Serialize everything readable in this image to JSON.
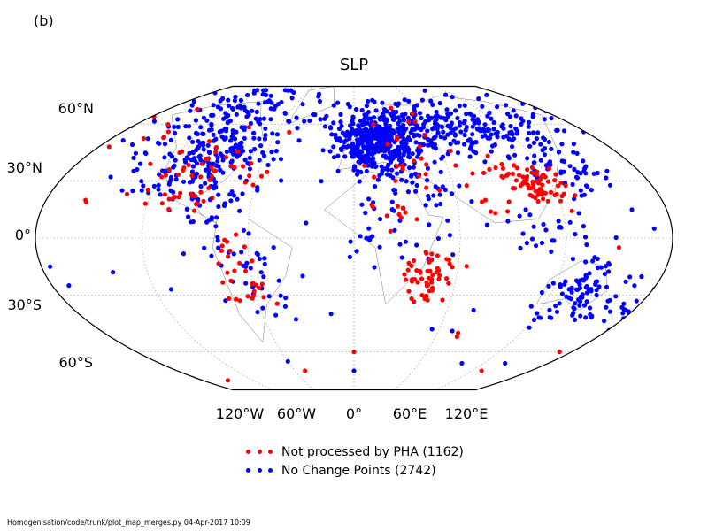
{
  "panel_label": "(b)",
  "title": "SLP",
  "lat_labels": [
    "60°N",
    "30°N",
    "0°",
    "30°S",
    "60°S"
  ],
  "lon_labels": [
    "120°W",
    "60°W",
    "0°",
    "60°E",
    "120°E"
  ],
  "legend": [
    {
      "label": "Not processed by PHA (1162)",
      "color": "#ff0000"
    },
    {
      "label": "No Change Points (2742)",
      "color": "#0000ff"
    }
  ],
  "footer": "Homogenisation/code/trunk/plot_map_merges.py   04-Apr-2017 10:09",
  "chart_data": {
    "type": "scatter",
    "projection": "Robinson",
    "grid": true,
    "legend_position": "bottom-center",
    "series": [
      {
        "name": "Not processed by PHA (1162)",
        "color": "#ff0000",
        "clusters": [
          {
            "lon": -95,
            "lat": 38,
            "spread": [
              18,
              9
            ],
            "count": 45
          },
          {
            "lon": -102,
            "lat": 20,
            "spread": [
              8,
              6
            ],
            "count": 14
          },
          {
            "lon": -65,
            "lat": -25,
            "spread": [
              8,
              12
            ],
            "count": 30
          },
          {
            "lon": -150,
            "lat": 60,
            "spread": [
              12,
              5
            ],
            "count": 8
          },
          {
            "lon": 45,
            "lat": -20,
            "spread": [
              8,
              6
            ],
            "count": 55
          },
          {
            "lon": 112,
            "lat": 27,
            "spread": [
              9,
              6
            ],
            "count": 70
          },
          {
            "lon": 60,
            "lat": 38,
            "spread": [
              22,
              6
            ],
            "count": 24
          },
          {
            "lon": 20,
            "lat": 10,
            "spread": [
              10,
              6
            ],
            "count": 10
          },
          {
            "lon": 80,
            "lat": 18,
            "spread": [
              5,
              5
            ],
            "count": 6
          },
          {
            "lon": 30,
            "lat": 60,
            "spread": [
              15,
              5
            ],
            "count": 8
          }
        ],
        "points": [
          {
            "lon": -157,
            "lat": 20
          },
          {
            "lon": -156,
            "lat": 19
          },
          {
            "lon": 75,
            "lat": -50
          },
          {
            "lon": 76,
            "lat": -52
          },
          {
            "lon": 170,
            "lat": -60
          },
          {
            "lon": 0,
            "lat": -60
          },
          {
            "lon": -150,
            "lat": -75
          },
          {
            "lon": -50,
            "lat": -70
          },
          {
            "lon": 130,
            "lat": -70
          },
          {
            "lon": 150,
            "lat": -5
          }
        ]
      },
      {
        "name": "No Change Points (2742)",
        "color": "#0000ff",
        "clusters": [
          {
            "lon": 15,
            "lat": 50,
            "spread": [
              14,
              8
            ],
            "count": 380
          },
          {
            "lon": 60,
            "lat": 55,
            "spread": [
              32,
              8
            ],
            "count": 170
          },
          {
            "lon": 110,
            "lat": 60,
            "spread": [
              35,
              7
            ],
            "count": 110
          },
          {
            "lon": 135,
            "lat": 40,
            "spread": [
              10,
              8
            ],
            "count": 55
          },
          {
            "lon": -95,
            "lat": 40,
            "spread": [
              22,
              10
            ],
            "count": 180
          },
          {
            "lon": -110,
            "lat": 60,
            "spread": [
              30,
              8
            ],
            "count": 80
          },
          {
            "lon": -100,
            "lat": 72,
            "spread": [
              35,
              6
            ],
            "count": 40
          },
          {
            "lon": 140,
            "lat": -28,
            "spread": [
              12,
              8
            ],
            "count": 95
          },
          {
            "lon": 110,
            "lat": 12,
            "spread": [
              15,
              10
            ],
            "count": 30
          },
          {
            "lon": 25,
            "lat": 5,
            "spread": [
              20,
              10
            ],
            "count": 35
          },
          {
            "lon": 45,
            "lat": 25,
            "spread": [
              15,
              6
            ],
            "count": 25
          },
          {
            "lon": -60,
            "lat": -20,
            "spread": [
              15,
              15
            ],
            "count": 40
          },
          {
            "lon": -85,
            "lat": 15,
            "spread": [
              10,
              6
            ],
            "count": 25
          },
          {
            "lon": 175,
            "lat": -40,
            "spread": [
              5,
              5
            ],
            "count": 14
          },
          {
            "lon": -40,
            "lat": 65,
            "spread": [
              10,
              5
            ],
            "count": 12
          }
        ],
        "points": [
          {
            "lon": -175,
            "lat": -15
          },
          {
            "lon": -170,
            "lat": -25
          },
          {
            "lon": -140,
            "lat": -18
          },
          {
            "lon": -110,
            "lat": -27
          },
          {
            "lon": -80,
            "lat": -33
          },
          {
            "lon": -130,
            "lat": 30
          },
          {
            "lon": 170,
            "lat": 5
          },
          {
            "lon": 160,
            "lat": 15
          },
          {
            "lon": 55,
            "lat": -48
          },
          {
            "lon": 70,
            "lat": -49
          },
          {
            "lon": 0,
            "lat": -70
          },
          {
            "lon": -60,
            "lat": -65
          },
          {
            "lon": 100,
            "lat": -66
          },
          {
            "lon": 140,
            "lat": -66
          },
          {
            "lon": 77,
            "lat": -38
          },
          {
            "lon": -15,
            "lat": -40
          },
          {
            "lon": -30,
            "lat": -20
          },
          {
            "lon": -20,
            "lat": 30
          }
        ]
      }
    ]
  }
}
